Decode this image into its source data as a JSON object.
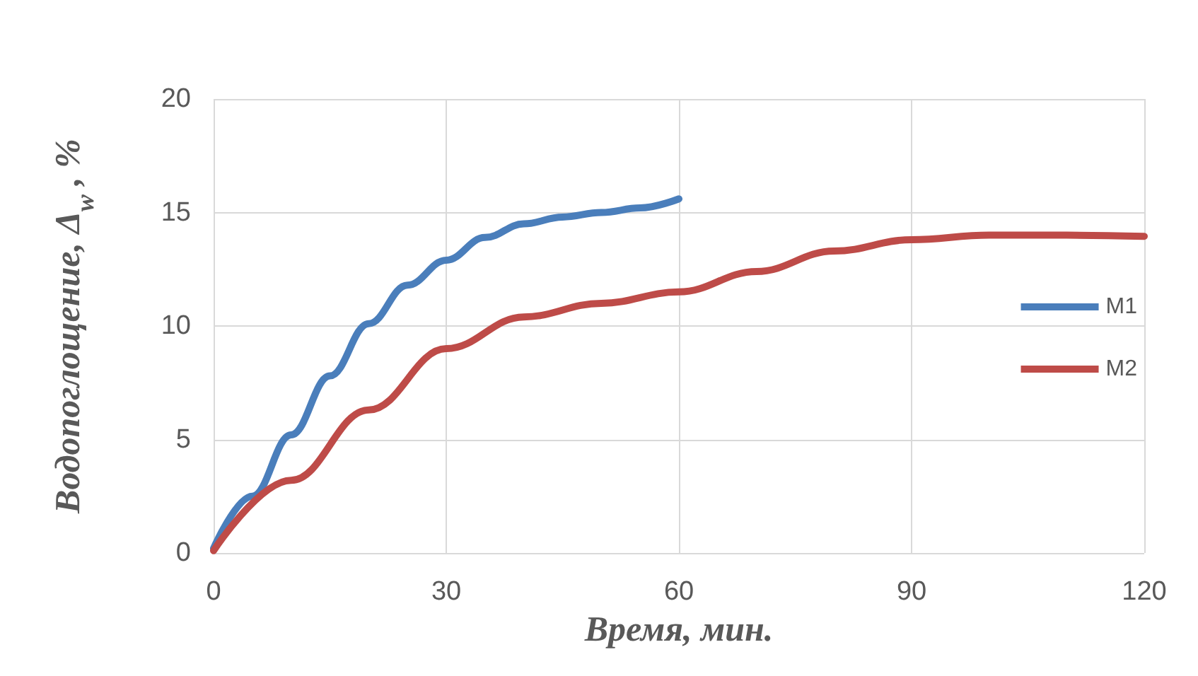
{
  "chart_data": {
    "type": "line",
    "xlabel": "Время, мин.",
    "ylabel": "Водопоглощение, Δ$_{w}$ , %",
    "xlim": [
      0,
      120
    ],
    "xticks": [
      0,
      30,
      60,
      90,
      120
    ],
    "ylim": [
      0,
      20
    ],
    "yticks": [
      0,
      5,
      10,
      15,
      20
    ],
    "grid": true,
    "legend": "right",
    "marker": "none",
    "line_style": "solid",
    "series": [
      {
        "name": "M1",
        "color": "#4a7ebb",
        "x": [
          0,
          5,
          10,
          15,
          20,
          25,
          30,
          35,
          40,
          45,
          50,
          55,
          60
        ],
        "values": [
          0.2,
          2.5,
          5.2,
          7.8,
          10.1,
          11.8,
          12.9,
          13.9,
          14.5,
          14.8,
          15.0,
          15.2,
          15.6
        ]
      },
      {
        "name": "M2",
        "color": "#be4b48",
        "x": [
          0,
          10,
          20,
          30,
          40,
          50,
          60,
          70,
          80,
          90,
          100,
          110,
          120
        ],
        "values": [
          0.1,
          3.2,
          6.3,
          9.0,
          10.4,
          11.0,
          11.5,
          12.4,
          13.3,
          13.8,
          14.0,
          14.0,
          13.95
        ]
      }
    ]
  }
}
